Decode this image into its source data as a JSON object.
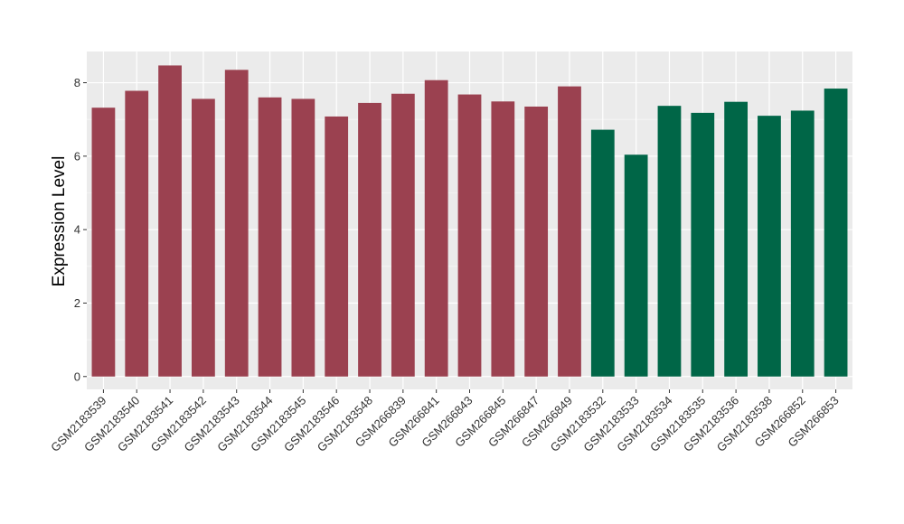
{
  "chart_data": {
    "type": "bar",
    "title": "",
    "xlabel": "",
    "ylabel": "Expression Level",
    "ylim": [
      -0.35,
      8.85
    ],
    "yticks": [
      0,
      2,
      4,
      6,
      8
    ],
    "grid": true,
    "legend": "none",
    "panel_background": "#ebebeb",
    "categories": [
      "GSM2183539",
      "GSM2183540",
      "GSM2183541",
      "GSM2183542",
      "GSM2183543",
      "GSM2183544",
      "GSM2183545",
      "GSM2183546",
      "GSM2183548",
      "GSM266839",
      "GSM266841",
      "GSM266843",
      "GSM266845",
      "GSM266847",
      "GSM266849",
      "GSM2183532",
      "GSM2183533",
      "GSM2183534",
      "GSM2183535",
      "GSM2183536",
      "GSM2183538",
      "GSM266852",
      "GSM266853"
    ],
    "values": [
      7.32,
      7.78,
      8.47,
      7.56,
      8.35,
      7.6,
      7.56,
      7.08,
      7.45,
      7.7,
      8.07,
      7.68,
      7.49,
      7.35,
      7.9,
      6.72,
      6.04,
      7.37,
      7.18,
      7.48,
      7.1,
      7.24,
      7.84
    ],
    "groups": [
      0,
      0,
      0,
      0,
      0,
      0,
      0,
      0,
      0,
      0,
      0,
      0,
      0,
      0,
      0,
      1,
      1,
      1,
      1,
      1,
      1,
      1,
      1
    ],
    "group_colors": [
      "#9b4150",
      "#006647"
    ]
  }
}
